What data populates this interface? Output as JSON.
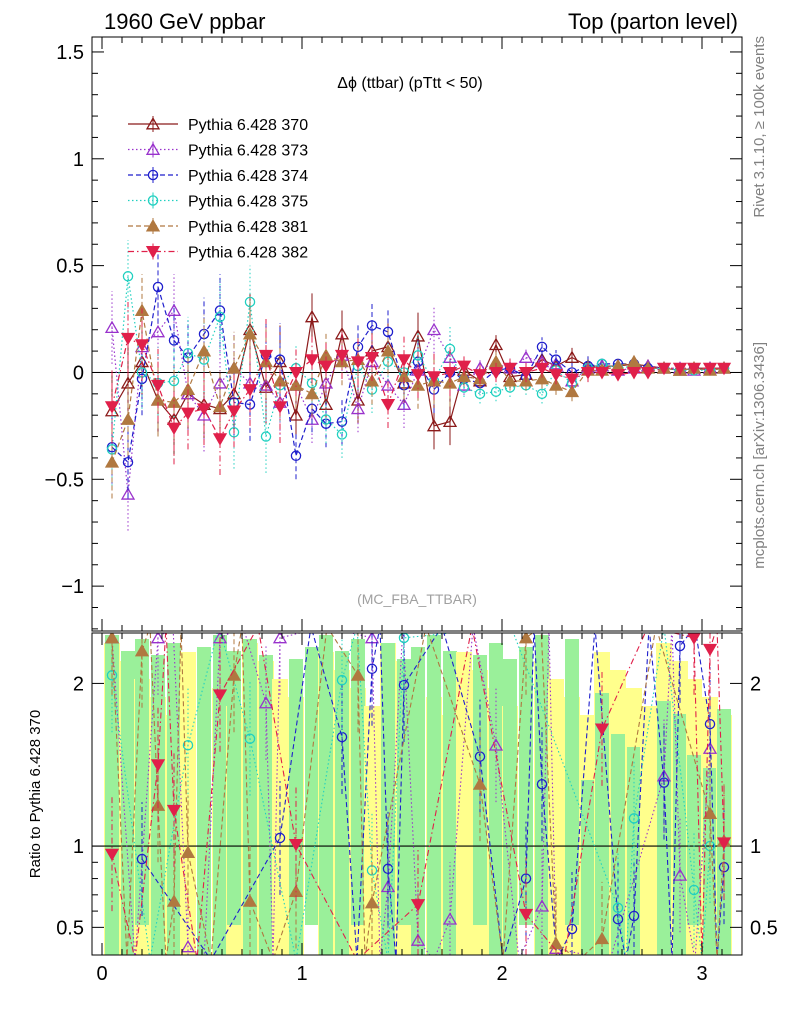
{
  "header": {
    "left": "1960 GeV ppbar",
    "right": "Top (parton level)"
  },
  "side_labels": {
    "rivet": "Rivet 3.1.10, ≥ 100k events",
    "mcplots": "mcplots.cern.ch [arXiv:1306.3436]"
  },
  "chart_data": [
    {
      "type": "line",
      "title": "Δϕ (ttbar) (pTtt < 50)",
      "watermark": "(MC_FBA_TTBAR)",
      "xlabel": "",
      "ylabel": "",
      "xlim": [
        -0.05,
        3.2
      ],
      "ylim": [
        -1.21,
        1.57
      ],
      "x_ticks": [
        0,
        1,
        2,
        3
      ],
      "y_ticks": [
        -1,
        -0.5,
        0,
        0.5,
        1,
        1.5
      ],
      "y_tick_labels": [
        "−1",
        "−0.5",
        "0",
        "0.5",
        "1",
        "1.5"
      ],
      "legend_position": "top-left",
      "x": [
        0.05,
        0.13,
        0.2,
        0.28,
        0.36,
        0.43,
        0.51,
        0.59,
        0.66,
        0.74,
        0.82,
        0.89,
        0.97,
        1.05,
        1.12,
        1.2,
        1.28,
        1.35,
        1.43,
        1.51,
        1.58,
        1.66,
        1.74,
        1.81,
        1.89,
        1.97,
        2.04,
        2.12,
        2.2,
        2.27,
        2.35,
        2.43,
        2.5,
        2.58,
        2.66,
        2.73,
        2.81,
        2.89,
        2.96,
        3.04,
        3.11
      ],
      "series": [
        {
          "name": "Pythia 6.428 370",
          "color": "#8b1a1a",
          "marker": "triangle-open",
          "dash": "solid",
          "values": [
            -0.18,
            -0.05,
            0.05,
            -0.13,
            -0.22,
            -0.1,
            -0.15,
            -0.17,
            -0.1,
            0.2,
            -0.07,
            0.05,
            -0.2,
            0.26,
            -0.15,
            0.18,
            -0.13,
            0.1,
            0.12,
            -0.05,
            0.17,
            -0.25,
            -0.23,
            0.01,
            -0.04,
            0.13,
            -0.02,
            -0.01,
            0.06,
            0.03,
            0.07,
            0.03,
            0.03,
            0.03,
            0.04,
            0.03,
            0.02,
            0.01,
            0.02,
            0.02,
            0.02
          ]
        },
        {
          "name": "Pythia 6.428 373",
          "color": "#9932cc",
          "marker": "triangle-open",
          "dash": "dotted",
          "values": [
            0.21,
            -0.57,
            0.12,
            0.19,
            0.29,
            -0.1,
            -0.2,
            -0.05,
            0.02,
            -0.05,
            -0.06,
            -0.14,
            -0.06,
            -0.22,
            -0.05,
            0.08,
            -0.17,
            0.05,
            -0.06,
            -0.15,
            0.01,
            0.2,
            0.07,
            -0.06,
            0.02,
            0.04,
            0.02,
            0.07,
            0.05,
            0.04,
            -0.04,
            0.02,
            0.03,
            0.01,
            0.02,
            0.03,
            0.02,
            0.02,
            0.01,
            0.02,
            0.02
          ]
        },
        {
          "name": "Pythia 6.428 374",
          "color": "#1f1fcc",
          "marker": "circle-open",
          "dash": "dashed",
          "values": [
            -0.35,
            -0.42,
            -0.03,
            0.4,
            0.15,
            0.07,
            0.18,
            0.29,
            -0.14,
            -0.15,
            0.08,
            0.06,
            -0.39,
            -0.17,
            -0.24,
            -0.23,
            0.12,
            0.22,
            0.19,
            -0.06,
            0.05,
            -0.08,
            0.0,
            -0.03,
            -0.05,
            0.01,
            0.02,
            -0.02,
            0.12,
            0.06,
            0.0,
            0.03,
            0.04,
            0.04,
            0.04,
            0.02,
            0.02,
            0.01,
            0.02,
            0.01,
            0.02
          ]
        },
        {
          "name": "Pythia 6.428 375",
          "color": "#20d0c0",
          "marker": "circle-open",
          "dash": "dotted",
          "values": [
            -0.36,
            0.45,
            0.0,
            -0.05,
            -0.04,
            0.09,
            0.06,
            0.26,
            -0.28,
            0.33,
            -0.3,
            -0.06,
            0.02,
            -0.05,
            -0.22,
            -0.29,
            0.03,
            -0.08,
            0.05,
            0.0,
            0.08,
            -0.04,
            0.11,
            -0.07,
            -0.1,
            -0.09,
            -0.07,
            -0.06,
            -0.1,
            0.01,
            -0.05,
            0.02,
            0.04,
            0.02,
            0.03,
            0.01,
            0.02,
            0.01,
            0.01,
            0.01,
            0.02
          ]
        },
        {
          "name": "Pythia 6.428 381",
          "color": "#b07840",
          "marker": "triangle-filled",
          "dash": "dashed",
          "values": [
            -0.42,
            -0.22,
            0.29,
            -0.13,
            -0.14,
            -0.08,
            0.1,
            -0.16,
            0.02,
            0.18,
            0.05,
            -0.04,
            -0.06,
            -0.1,
            0.08,
            0.05,
            0.06,
            -0.04,
            0.1,
            -0.02,
            -0.06,
            -0.04,
            -0.05,
            -0.02,
            -0.03,
            0.05,
            -0.04,
            -0.04,
            -0.03,
            -0.06,
            -0.09,
            0.01,
            0.01,
            0.03,
            0.05,
            0.02,
            0.02,
            0.01,
            0.02,
            0.01,
            0.02
          ]
        },
        {
          "name": "Pythia 6.428 382",
          "color": "#e0204a",
          "marker": "triangle-down-filled",
          "dash": "dashdot",
          "values": [
            -0.16,
            0.16,
            0.13,
            -0.06,
            -0.26,
            -0.19,
            -0.17,
            -0.31,
            -0.18,
            -0.08,
            0.08,
            -0.16,
            0.0,
            0.06,
            0.03,
            0.08,
            0.05,
            0.07,
            -0.15,
            0.06,
            -0.01,
            -0.02,
            0.0,
            0.03,
            -0.01,
            0.0,
            0.02,
            0.0,
            0.02,
            -0.01,
            -0.03,
            0.0,
            0.0,
            -0.01,
            0.0,
            0.0,
            0.02,
            0.02,
            0.02,
            0.02,
            0.02
          ]
        }
      ]
    },
    {
      "type": "line",
      "title": "",
      "ylabel": "Ratio to Pythia 6.428 370",
      "xlabel": "",
      "xlim": [
        -0.05,
        3.2
      ],
      "ylim": [
        0.33,
        2.31
      ],
      "x_ticks": [
        0,
        1,
        2,
        3
      ],
      "y_ticks": [
        0.5,
        1,
        2
      ],
      "y_tick_labels": [
        "0.5",
        "1",
        "2"
      ],
      "reference_line": 1,
      "bands": "green/yellow uncertainty bands of the reference",
      "series": [
        {
          "name": "Pythia 6.428 373",
          "color": "#9932cc",
          "marker": "triangle-open",
          "dash": "dotted",
          "points": [
            [
              0.05,
              2.28
            ],
            [
              0.28,
              2.28
            ],
            [
              0.43,
              0.38
            ],
            [
              0.59,
              2.28
            ],
            [
              0.82,
              1.88
            ],
            [
              0.89,
              2.28
            ],
            [
              1.35,
              2.28
            ],
            [
              1.43,
              0.75
            ],
            [
              1.58,
              0.42
            ],
            [
              1.74,
              0.55
            ],
            [
              1.97,
              1.62
            ],
            [
              2.2,
              0.63
            ],
            [
              2.27,
              0.37
            ],
            [
              2.81,
              1.43
            ],
            [
              2.89,
              0.82
            ],
            [
              3.04,
              1.6
            ]
          ]
        },
        {
          "name": "Pythia 6.428 374",
          "color": "#1f1fcc",
          "marker": "circle-open",
          "dash": "dashed",
          "points": [
            [
              0.2,
              0.92
            ],
            [
              0.89,
              1.05
            ],
            [
              1.2,
              1.67
            ],
            [
              1.35,
              2.09
            ],
            [
              1.43,
              0.86
            ],
            [
              1.51,
              1.99
            ],
            [
              1.89,
              1.55
            ],
            [
              2.12,
              0.8
            ],
            [
              2.2,
              1.38
            ],
            [
              2.35,
              0.49
            ],
            [
              2.58,
              0.55
            ],
            [
              2.66,
              0.57
            ],
            [
              2.81,
              1.39
            ],
            [
              2.89,
              2.23
            ],
            [
              3.04,
              1.75
            ],
            [
              3.11,
              0.87
            ]
          ]
        },
        {
          "name": "Pythia 6.428 375",
          "color": "#20d0c0",
          "marker": "circle-open",
          "dash": "dotted",
          "points": [
            [
              0.05,
              2.05
            ],
            [
              0.43,
              1.62
            ],
            [
              0.74,
              1.66
            ],
            [
              1.2,
              2.02
            ],
            [
              1.35,
              0.85
            ],
            [
              1.51,
              2.28
            ],
            [
              2.58,
              0.62
            ],
            [
              2.66,
              1.17
            ],
            [
              2.96,
              0.73
            ],
            [
              3.04,
              1.0
            ]
          ]
        },
        {
          "name": "Pythia 6.428 381",
          "color": "#b07840",
          "marker": "triangle-filled",
          "dash": "dashed",
          "points": [
            [
              0.05,
              2.28
            ],
            [
              0.2,
              2.2
            ],
            [
              0.28,
              1.25
            ],
            [
              0.36,
              0.66
            ],
            [
              0.43,
              0.96
            ],
            [
              0.66,
              2.05
            ],
            [
              0.74,
              0.66
            ],
            [
              0.97,
              0.72
            ],
            [
              1.28,
              2.05
            ],
            [
              1.35,
              0.65
            ],
            [
              1.89,
              1.38
            ],
            [
              2.12,
              2.28
            ],
            [
              2.27,
              0.4
            ],
            [
              2.5,
              0.43
            ],
            [
              3.04,
              1.2
            ],
            [
              3.11,
              1.03
            ]
          ]
        },
        {
          "name": "Pythia 6.428 382",
          "color": "#e0204a",
          "marker": "triangle-down-filled",
          "dash": "dashdot",
          "points": [
            [
              0.05,
              0.95
            ],
            [
              0.28,
              1.5
            ],
            [
              0.36,
              1.22
            ],
            [
              0.59,
              1.93
            ],
            [
              0.97,
              1.01
            ],
            [
              1.58,
              0.64
            ],
            [
              2.12,
              0.58
            ],
            [
              2.5,
              1.72
            ],
            [
              2.96,
              2.28
            ],
            [
              3.04,
              2.21
            ],
            [
              3.11,
              1.02
            ]
          ]
        }
      ]
    }
  ]
}
